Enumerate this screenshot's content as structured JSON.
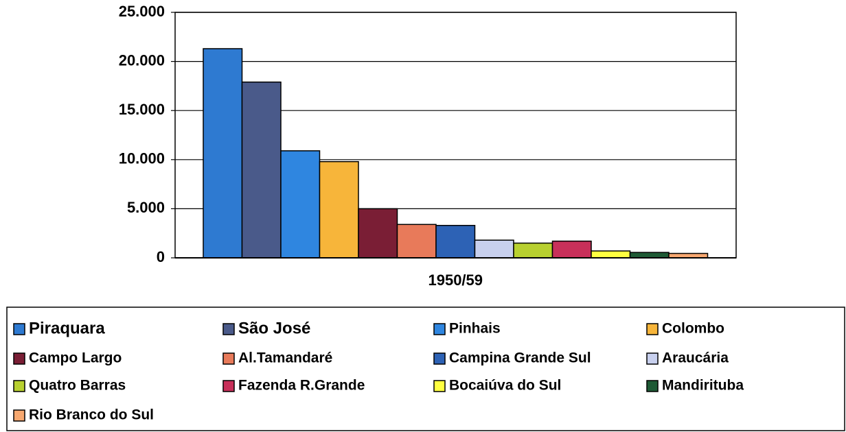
{
  "chart_data": {
    "type": "bar",
    "categories": [
      "1950/59"
    ],
    "series": [
      {
        "name": "Piraquara",
        "color": "#2e7ad1",
        "values": [
          21300
        ]
      },
      {
        "name": "São José",
        "color": "#4a5a8a",
        "values": [
          17900
        ]
      },
      {
        "name": "Pinhais",
        "color": "#2f86e0",
        "values": [
          10900
        ]
      },
      {
        "name": "Colombo",
        "color": "#f7b53a",
        "values": [
          9800
        ]
      },
      {
        "name": "Campo Largo",
        "color": "#7a1e35",
        "values": [
          5000
        ]
      },
      {
        "name": "Al.Tamandaré",
        "color": "#e87a5a",
        "values": [
          3400
        ]
      },
      {
        "name": "Campina Grande Sul",
        "color": "#2d62b5",
        "values": [
          3300
        ]
      },
      {
        "name": "Araucária",
        "color": "#c8d0ee",
        "values": [
          1800
        ]
      },
      {
        "name": "Quatro Barras",
        "color": "#b8d030",
        "values": [
          1500
        ]
      },
      {
        "name": "Fazenda R.Grande",
        "color": "#c8305a",
        "values": [
          1700
        ]
      },
      {
        "name": "Bocaiúva do Sul",
        "color": "#ffff40",
        "values": [
          700
        ]
      },
      {
        "name": "Mandirituba",
        "color": "#1e5a35",
        "values": [
          550
        ]
      },
      {
        "name": "Rio Branco do Sul",
        "color": "#f7a870",
        "values": [
          450
        ]
      }
    ],
    "ylim": [
      0,
      25000
    ],
    "yticks": [
      0,
      {
        "value": 5000,
        "label": "5.000"
      },
      {
        "value": 10000,
        "label": "10.000"
      },
      {
        "value": 15000,
        "label": "15.000"
      },
      {
        "value": 20000,
        "label": "20.000"
      },
      {
        "value": 25000,
        "label": "25.000"
      }
    ],
    "grid": true
  }
}
